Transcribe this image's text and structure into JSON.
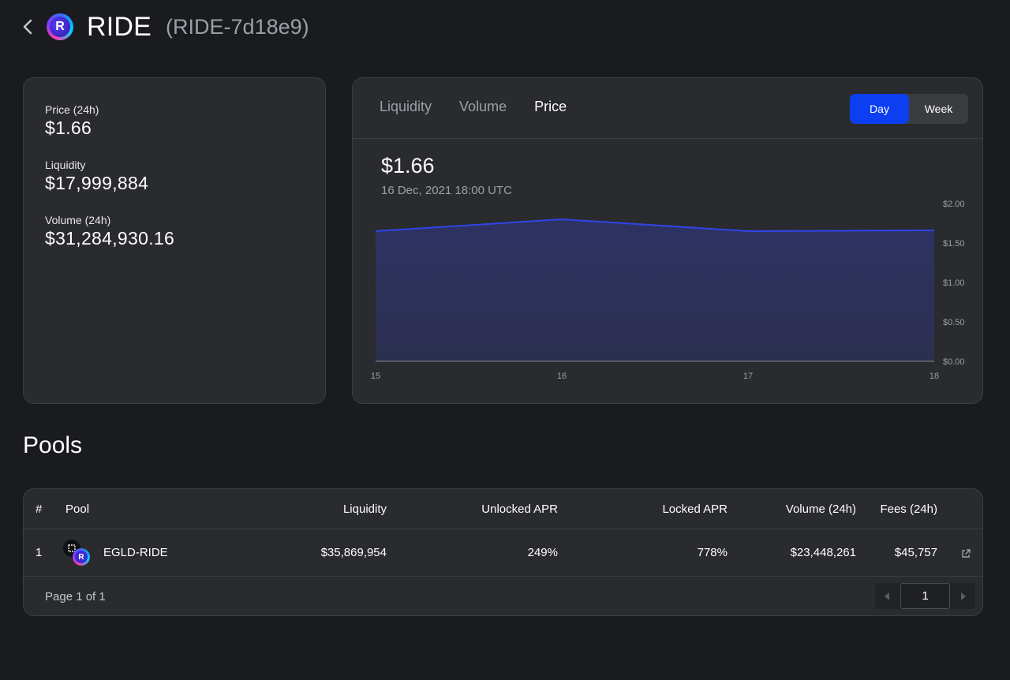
{
  "header": {
    "title": "RIDE",
    "identifier": "(RIDE-7d18e9)",
    "logo_letter": "R"
  },
  "stats": {
    "price": {
      "label": "Price (24h)",
      "value": "$1.66"
    },
    "liquidity": {
      "label": "Liquidity",
      "value": "$17,999,884"
    },
    "volume": {
      "label": "Volume (24h)",
      "value": "$31,284,930.16"
    }
  },
  "chart_panel": {
    "tabs": [
      {
        "label": "Liquidity",
        "active": false
      },
      {
        "label": "Volume",
        "active": false
      },
      {
        "label": "Price",
        "active": true
      }
    ],
    "periods": [
      {
        "label": "Day",
        "active": true
      },
      {
        "label": "Week",
        "active": false
      }
    ],
    "current_value": "$1.66",
    "current_date": "16 Dec, 2021 18:00 UTC"
  },
  "chart_data": {
    "type": "area",
    "x": [
      "15",
      "16",
      "17",
      "18"
    ],
    "series": [
      {
        "values": [
          1.65,
          1.8,
          1.65,
          1.66
        ]
      }
    ],
    "ylim": [
      0,
      2
    ],
    "y_ticks": [
      "$0.00",
      "$0.50",
      "$1.00",
      "$1.50",
      "$2.00"
    ],
    "y_axis_position": "right",
    "grid": false,
    "line_color": "#2f45e8",
    "fill_color": "#2e3366"
  },
  "pools": {
    "heading": "Pools",
    "columns": [
      "#",
      "Pool",
      "Liquidity",
      "Unlocked APR",
      "Locked APR",
      "Volume (24h)",
      "Fees (24h)"
    ],
    "rows": [
      {
        "rank": "1",
        "pool": "EGLD-RIDE",
        "liquidity": "$35,869,954",
        "unlocked_apr": "249%",
        "locked_apr": "778%",
        "volume": "$23,448,261",
        "fees": "$45,757",
        "logo_letter": "R"
      }
    ],
    "page_info": "Page 1 of 1",
    "page_input_value": "1"
  },
  "colors": {
    "background": "#1a1b1e",
    "card": "#2a2b2e",
    "accent": "#0b3ff0",
    "muted_text": "#9aa0a8"
  },
  "icons": {
    "back": "chevron-left-icon",
    "external": "external-link-icon",
    "prev": "caret-left-icon",
    "next": "caret-right-icon"
  }
}
